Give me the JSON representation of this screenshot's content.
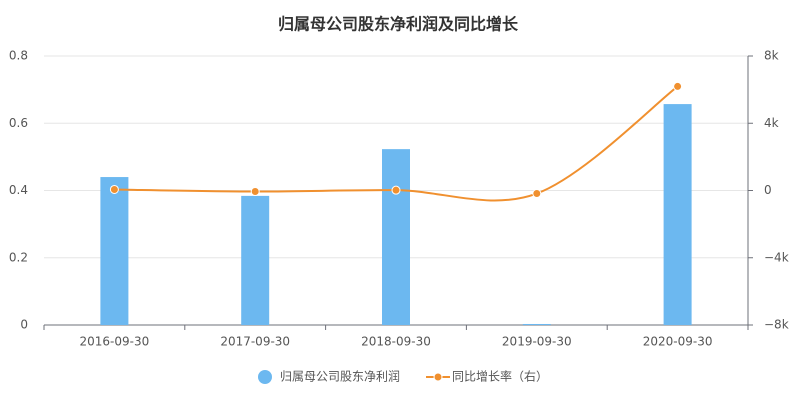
{
  "chart_data": {
    "type": "combo",
    "title": "归属母公司股东净利润及同比增长",
    "categories": [
      "2016-09-30",
      "2017-09-30",
      "2018-09-30",
      "2019-09-30",
      "2020-09-30"
    ],
    "series": [
      {
        "name": "归属母公司股东净利润",
        "type": "bar",
        "color": "#6cb8f0",
        "values": [
          0.44,
          0.384,
          0.523,
          0.003,
          0.657
        ]
      },
      {
        "name": "同比增长率（右）",
        "type": "line",
        "axis": "y2",
        "color": "#f0902f",
        "smooth": true,
        "values": [
          60,
          -60,
          20,
          -180,
          6190
        ]
      }
    ],
    "ylim": [
      0,
      0.8
    ],
    "yticks": [
      0,
      0.2,
      0.4,
      0.6,
      0.8
    ],
    "y2lim": [
      -8000,
      8000
    ],
    "y2ticks": [
      {
        "value": -8000,
        "label": "−8k"
      },
      {
        "value": -4000,
        "label": "−4k"
      },
      {
        "value": 0,
        "label": "0"
      },
      {
        "value": 4000,
        "label": "4k"
      },
      {
        "value": 8000,
        "label": "8k"
      }
    ],
    "grid": true,
    "legend": "bottom"
  }
}
